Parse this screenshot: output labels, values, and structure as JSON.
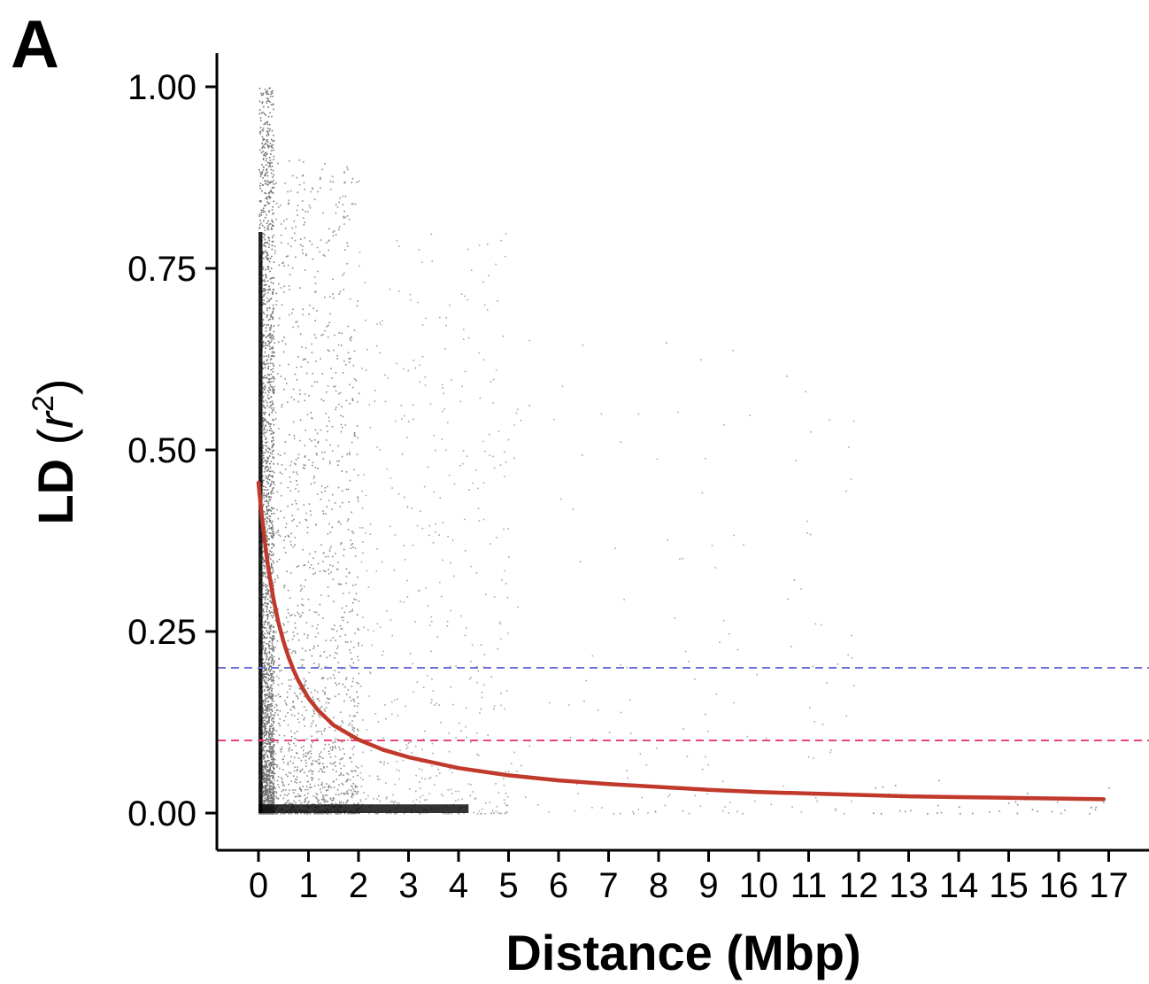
{
  "panel_label": "A",
  "chart_data": {
    "type": "scatter",
    "xlabel": "Distance (Mbp)",
    "ylabel": {
      "prefix": "LD",
      "var": "r",
      "exp": "2"
    },
    "xlim": [
      0,
      17.8
    ],
    "ylim": [
      -0.1,
      1.05
    ],
    "x_ticks": [
      "0",
      "1",
      "2",
      "3",
      "4",
      "5",
      "6",
      "7",
      "8",
      "9",
      "10",
      "11",
      "12",
      "13",
      "14",
      "15",
      "16",
      "17"
    ],
    "y_ticks": [
      "0.00",
      "0.25",
      "0.50",
      "0.75",
      "1.00"
    ],
    "grid": false,
    "point_color": "#000000",
    "density_summary": [
      {
        "x_range": [
          0,
          0.3
        ],
        "r2_range": [
          0.0,
          1.0
        ],
        "density": "very high"
      },
      {
        "x_range": [
          0.3,
          2
        ],
        "r2_range": [
          0.0,
          0.9
        ],
        "density": "high"
      },
      {
        "x_range": [
          2,
          5
        ],
        "r2_range": [
          0.0,
          0.8
        ],
        "density": "medium"
      },
      {
        "x_range": [
          5,
          12
        ],
        "r2_range": [
          0.0,
          0.67
        ],
        "density": "low"
      },
      {
        "x_range": [
          12,
          17
        ],
        "r2_range": [
          0.0,
          0.05
        ],
        "density": "very low"
      }
    ],
    "fit_curve": {
      "color": "#c0392b",
      "points": [
        [
          0.0,
          0.455
        ],
        [
          0.05,
          0.42
        ],
        [
          0.1,
          0.39
        ],
        [
          0.15,
          0.36
        ],
        [
          0.2,
          0.335
        ],
        [
          0.3,
          0.295
        ],
        [
          0.4,
          0.262
        ],
        [
          0.5,
          0.236
        ],
        [
          0.6,
          0.215
        ],
        [
          0.7,
          0.197
        ],
        [
          0.8,
          0.182
        ],
        [
          1.0,
          0.158
        ],
        [
          1.2,
          0.141
        ],
        [
          1.5,
          0.121
        ],
        [
          2.0,
          0.101
        ],
        [
          2.5,
          0.087
        ],
        [
          3.0,
          0.077
        ],
        [
          4.0,
          0.062
        ],
        [
          5.0,
          0.052
        ],
        [
          6.0,
          0.045
        ],
        [
          7.0,
          0.04
        ],
        [
          8.0,
          0.036
        ],
        [
          9.0,
          0.032
        ],
        [
          10.0,
          0.029
        ],
        [
          11.0,
          0.027
        ],
        [
          12.0,
          0.025
        ],
        [
          13.0,
          0.023
        ],
        [
          14.0,
          0.022
        ],
        [
          15.0,
          0.021
        ],
        [
          16.0,
          0.02
        ],
        [
          16.9,
          0.019
        ]
      ]
    },
    "reference_lines": [
      {
        "y": 0.2,
        "color": "#6f6fd8",
        "style": "dashed"
      },
      {
        "y": 0.1,
        "color": "#e8457a",
        "style": "dashed"
      }
    ]
  }
}
